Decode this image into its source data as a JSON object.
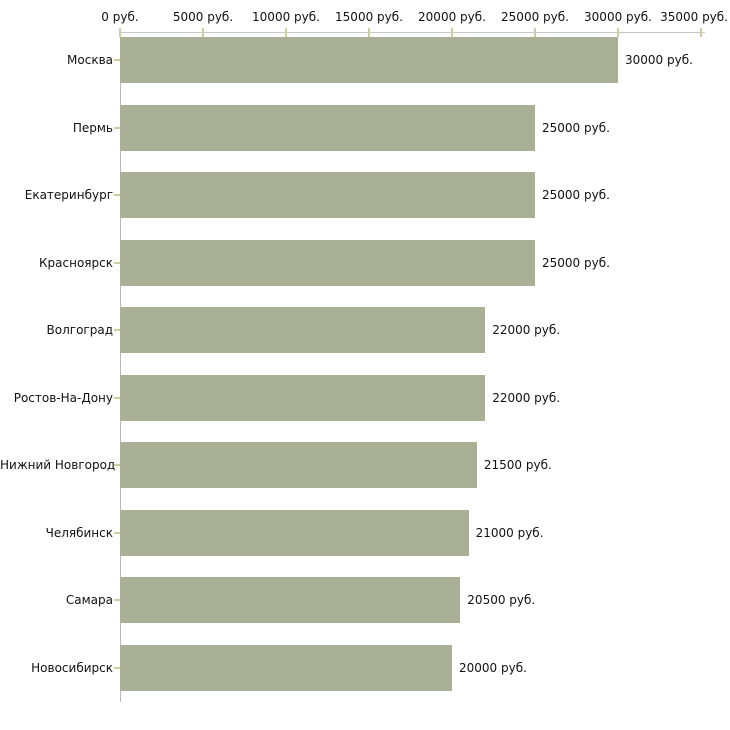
{
  "chart_data": {
    "type": "bar",
    "orientation": "horizontal",
    "title": "",
    "xlabel": "",
    "ylabel": "",
    "categories": [
      "Москва",
      "Пермь",
      "Екатеринбург",
      "Красноярск",
      "Волгоград",
      "Ростов-На-Дону",
      "Нижний Новгород",
      "Челябинск",
      "Самара",
      "Новосибирск"
    ],
    "values": [
      30000,
      25000,
      25000,
      25000,
      22000,
      22000,
      21500,
      21000,
      20500,
      20000
    ],
    "value_labels": [
      "30000 руб.",
      "25000 руб.",
      "25000 руб.",
      "25000 руб.",
      "22000 руб.",
      "22000 руб.",
      "21500 руб.",
      "21000 руб.",
      "20500 руб.",
      "20000 руб."
    ],
    "x_ticks": [
      0,
      5000,
      10000,
      15000,
      20000,
      25000,
      30000,
      35000
    ],
    "x_tick_labels": [
      "0 руб.",
      "5000 руб.",
      "10000 руб.",
      "15000 руб.",
      "20000 руб.",
      "25000 руб.",
      "30000 руб.",
      "35000 руб."
    ],
    "xlim": [
      0,
      35000
    ],
    "unit": "руб.",
    "grid": "off",
    "legend": "none",
    "axis_position": "top",
    "colors": {
      "bar_fill": "#aab096",
      "axis_line": "#c6c6c6",
      "tick_mark": "#d0cda0",
      "text": "#111111",
      "background": "#ffffff"
    }
  }
}
